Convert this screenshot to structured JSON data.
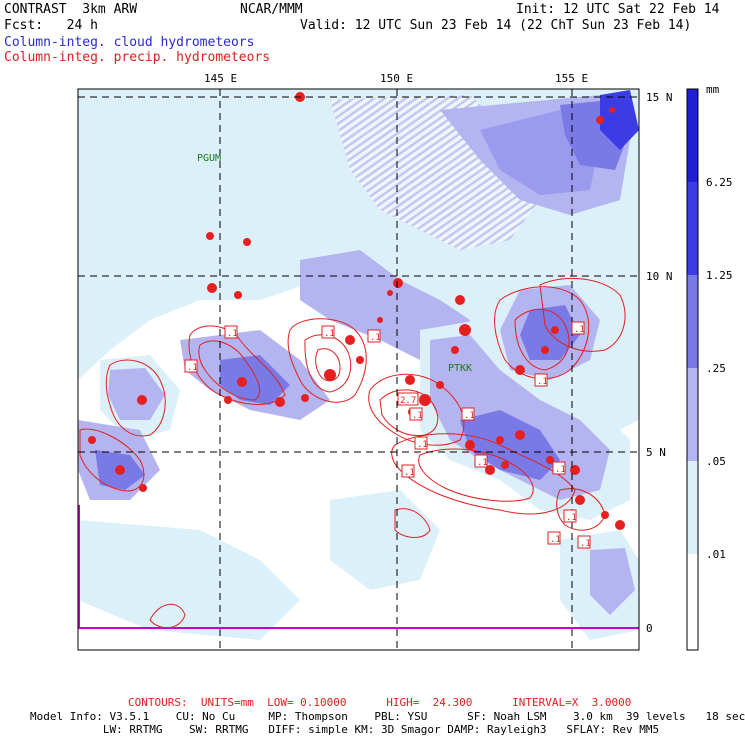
{
  "header": {
    "model": "CONTRAST  3km ARW",
    "org": "NCAR/MMM",
    "init": "Init: 12 UTC Sat 22 Feb 14",
    "fcst": "Fcst:   24 h",
    "valid": "Valid: 12 UTC Sun 23 Feb 14 (22 ChT Sun 23 Feb 14)",
    "legend_cloud": "Column-integ. cloud hydrometeors",
    "legend_precip": "Column-integ. precip. hydrometeors"
  },
  "axes": {
    "lon_labels": [
      "145 E",
      "150 E",
      "155 E"
    ],
    "lat_labels": [
      "15 N",
      "10 N",
      "5 N",
      "0"
    ]
  },
  "stations": [
    "PGUM",
    "PTKK"
  ],
  "colorbar": {
    "unit": "mm",
    "labels": [
      "6.25",
      "1.25",
      ".25",
      ".05",
      ".01"
    ],
    "colors": [
      "#1e1ed2",
      "#3c3ce6",
      "#7a7ae6",
      "#b4b4f0",
      "#dcf0fa",
      "#ffffff"
    ]
  },
  "contour_labels": [
    ".1",
    ".1",
    ".1",
    ".1",
    ".1",
    ".1",
    "2.7",
    ".1",
    ".1",
    ".1",
    ".1",
    ".1",
    ".1",
    ".1",
    ".1",
    ".1"
  ],
  "footer": {
    "contours": "CONTOURS:  UNITS=mm  LOW= 0.10000      HIGH=  24.300      INTERVAL=X  3.0000",
    "model_info_1": "Model Info: V3.5.1    CU: No Cu     MP: Thompson    PBL: YSU      SF: Noah LSM    3.0 km  39 levels   18 sec",
    "model_info_2": "           LW: RRTMG    SW: RRTMG   DIFF: simple KM: 3D Smagor DAMP: Rayleigh3   SFLAY: Rev MM5"
  },
  "colors": {
    "cloud_label": "#2a2acc",
    "precip": "#e02020",
    "station": "#1a7a1a",
    "boundary": "#cc00cc"
  }
}
